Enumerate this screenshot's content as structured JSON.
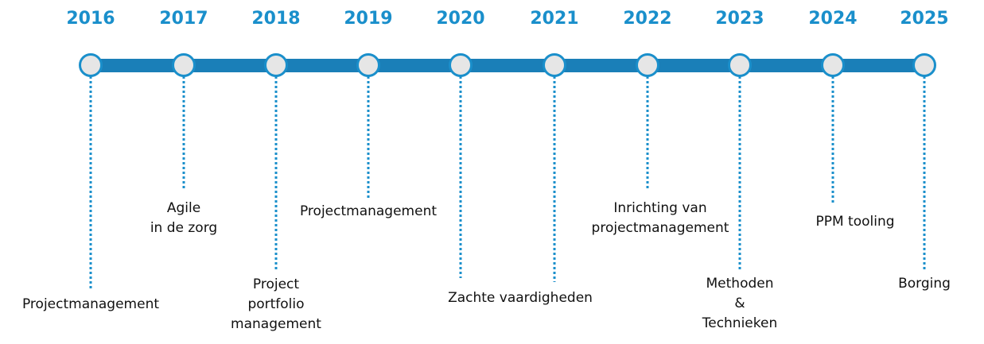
{
  "timeline": {
    "items": [
      {
        "year": "2016",
        "label": [
          "Projectmanagement"
        ]
      },
      {
        "year": "2017",
        "label": [
          "Agile",
          "in de zorg"
        ]
      },
      {
        "year": "2018",
        "label": [
          "Project",
          "portfolio",
          "management"
        ]
      },
      {
        "year": "2019",
        "label": [
          "Projectmanagement"
        ]
      },
      {
        "year": "2020",
        "label": [
          "Zachte vaardigheden"
        ]
      },
      {
        "year": "2021",
        "label": []
      },
      {
        "year": "2022",
        "label": [
          "Inrichting van",
          "projectmanagement"
        ]
      },
      {
        "year": "2023",
        "label": [
          "Methoden",
          "&",
          "Technieken"
        ]
      },
      {
        "year": "2024",
        "label": [
          "PPM tooling"
        ]
      },
      {
        "year": "2025",
        "label": [
          "Borging"
        ]
      }
    ]
  }
}
